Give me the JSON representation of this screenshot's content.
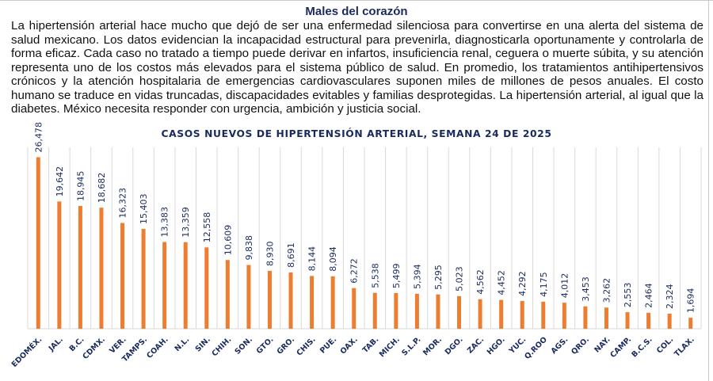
{
  "article": {
    "heading": "Males del corazón",
    "paragraph": "La hipertensión arterial hace mucho que dejó de ser una enfermedad silenciosa para convertirse en una alerta del sistema de salud mexicano. Los datos evidencian la incapacidad estructural para prevenirla, diagnosticarla oportunamente y controlarla de forma eficaz. Cada caso no tratado a tiempo puede derivar en infartos, insuficiencia renal, ceguera o muerte súbita, y su atención representa uno de los costos más elevados para el sistema público de salud. En promedio, los tratamientos antihipertensivos crónicos y la atención hospitalaria de emergencias cardiovasculares suponen miles de millones de pesos anuales. El costo humano se traduce en vidas truncadas, discapacidades evitables y familias desprotegidas. La hipertensión arterial, al igual que la diabetes. México necesita responder con urgencia, ambición y justicia social."
  },
  "colors": {
    "bar": "#ed7d31",
    "text_dark_blue": "#1a2a5e",
    "gridline": "#d9d9d9"
  },
  "chart_data": {
    "type": "bar",
    "title": "CASOS NUEVOS DE HIPERTENSIÓN ARTERIAL, SEMANA 24 DE 2025",
    "xlabel": "",
    "ylabel": "",
    "ylim": [
      0,
      28000
    ],
    "grid": "vertical",
    "legend": "none",
    "categories": [
      "EDOMÉX.",
      "JAL.",
      "B.C.",
      "CDMX.",
      "VER.",
      "TAMPS.",
      "COAH.",
      "N.L.",
      "SIN.",
      "CHIH.",
      "SON.",
      "GTO.",
      "GRO.",
      "CHIS.",
      "PUE.",
      "OAX.",
      "TAB.",
      "MICH.",
      "S.L.P.",
      "MOR.",
      "DGO.",
      "ZAC.",
      "HGO.",
      "YUC.",
      "Q.ROO",
      "AGS.",
      "QRO.",
      "NAY.",
      "CAMP.",
      "B.C.S.",
      "COL.",
      "TLAX."
    ],
    "values": [
      26478,
      19642,
      18945,
      18682,
      16323,
      15403,
      13383,
      13359,
      12558,
      10609,
      9838,
      8930,
      8691,
      8144,
      8094,
      6272,
      5538,
      5499,
      5394,
      5295,
      5023,
      4562,
      4452,
      4292,
      4175,
      4012,
      3453,
      3262,
      2553,
      2464,
      2324,
      1694
    ],
    "value_labels": [
      "26,478",
      "19,642",
      "18,945",
      "18,682",
      "16,323",
      "15,403",
      "13,383",
      "13,359",
      "12,558",
      "10,609",
      "9,838",
      "8,930",
      "8,691",
      "8,144",
      "8,094",
      "6,272",
      "5,538",
      "5,499",
      "5,394",
      "5,295",
      "5,023",
      "4,562",
      "4,452",
      "4,292",
      "4,175",
      "4,012",
      "3,453",
      "3,262",
      "2,553",
      "2,464",
      "2,324",
      "1,694"
    ]
  }
}
